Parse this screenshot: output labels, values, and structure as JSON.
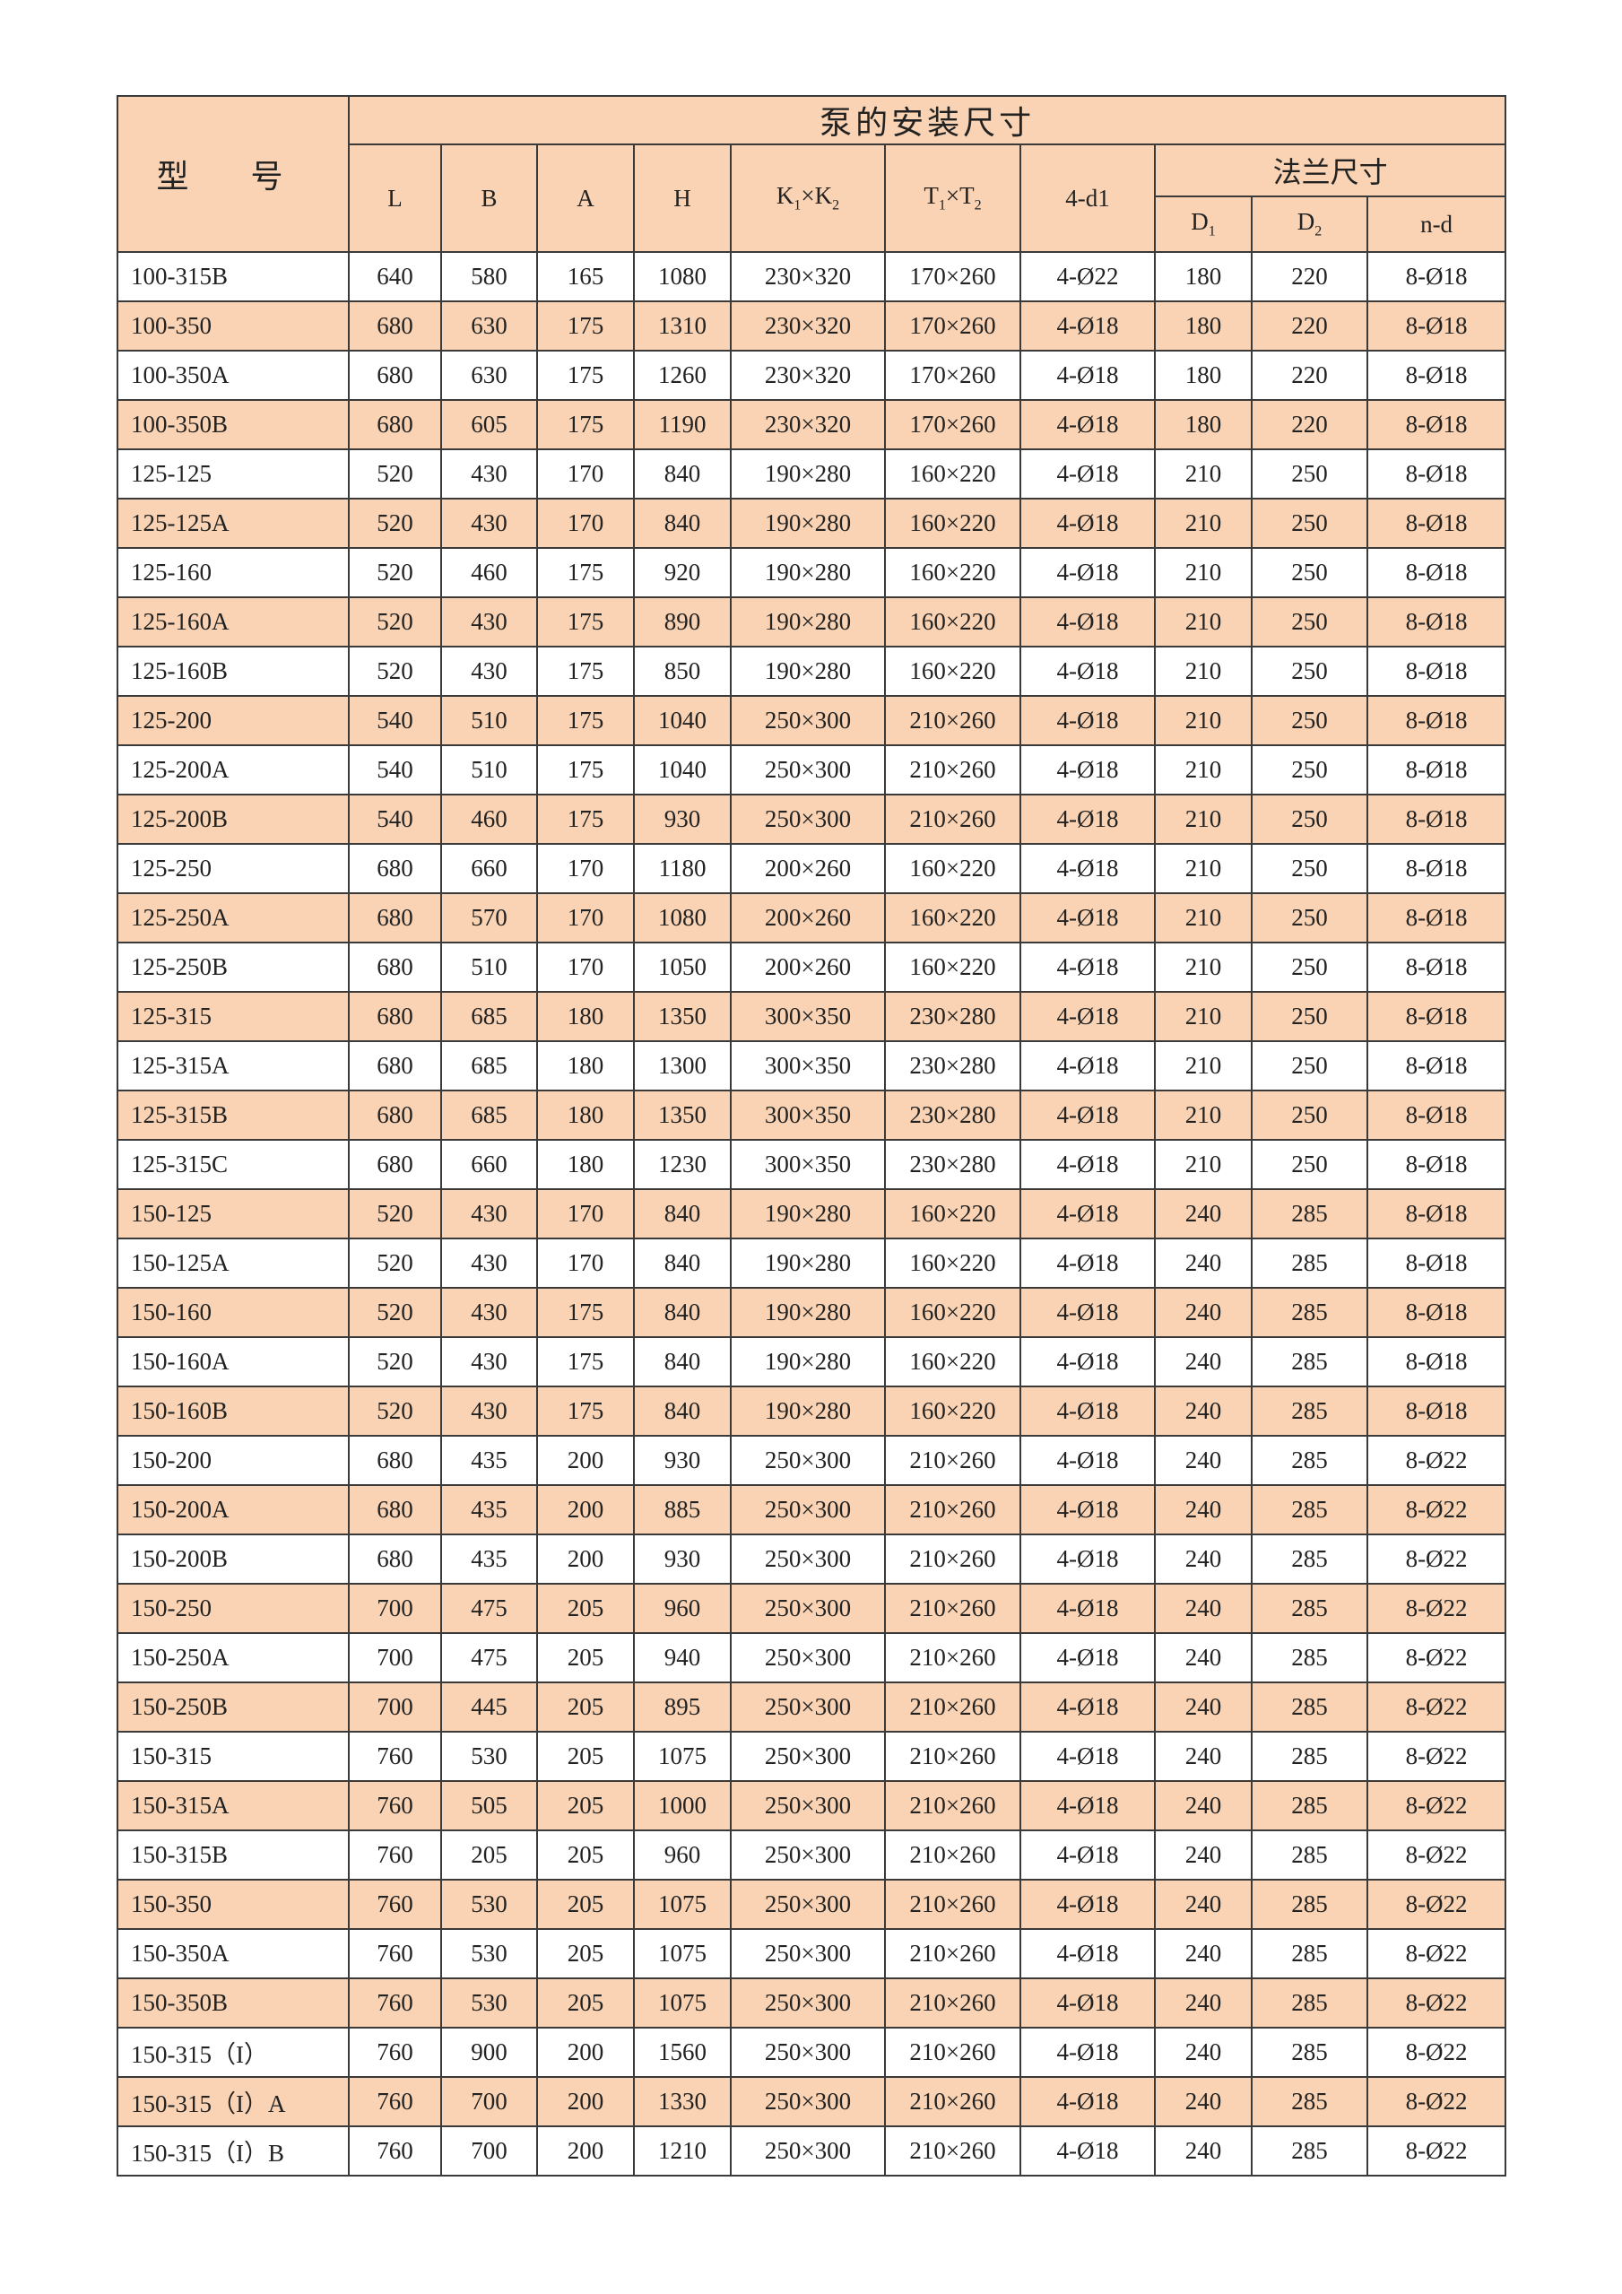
{
  "header": {
    "model": "型 号",
    "group": "泵的安装尺寸",
    "flange_group": "法兰尺寸",
    "columns": {
      "L": "L",
      "B": "B",
      "A": "A",
      "H": "H",
      "K": [
        "K",
        "1",
        "×K",
        "2"
      ],
      "T": [
        "T",
        "1",
        "×T",
        "2"
      ],
      "d1": "4-d1",
      "D1": [
        "D",
        "1"
      ],
      "D2": [
        "D",
        "2"
      ],
      "nd": "n-d"
    }
  },
  "colors": {
    "row_highlight": "#f9d3b3",
    "border": "#3a3a3a"
  },
  "rows": [
    [
      "100-315B",
      "640",
      "580",
      "165",
      "1080",
      "230×320",
      "170×260",
      "4-Ø22",
      "180",
      "220",
      "8-Ø18"
    ],
    [
      "100-350",
      "680",
      "630",
      "175",
      "1310",
      "230×320",
      "170×260",
      "4-Ø18",
      "180",
      "220",
      "8-Ø18"
    ],
    [
      "100-350A",
      "680",
      "630",
      "175",
      "1260",
      "230×320",
      "170×260",
      "4-Ø18",
      "180",
      "220",
      "8-Ø18"
    ],
    [
      "100-350B",
      "680",
      "605",
      "175",
      "1190",
      "230×320",
      "170×260",
      "4-Ø18",
      "180",
      "220",
      "8-Ø18"
    ],
    [
      "125-125",
      "520",
      "430",
      "170",
      "840",
      "190×280",
      "160×220",
      "4-Ø18",
      "210",
      "250",
      "8-Ø18"
    ],
    [
      "125-125A",
      "520",
      "430",
      "170",
      "840",
      "190×280",
      "160×220",
      "4-Ø18",
      "210",
      "250",
      "8-Ø18"
    ],
    [
      "125-160",
      "520",
      "460",
      "175",
      "920",
      "190×280",
      "160×220",
      "4-Ø18",
      "210",
      "250",
      "8-Ø18"
    ],
    [
      "125-160A",
      "520",
      "430",
      "175",
      "890",
      "190×280",
      "160×220",
      "4-Ø18",
      "210",
      "250",
      "8-Ø18"
    ],
    [
      "125-160B",
      "520",
      "430",
      "175",
      "850",
      "190×280",
      "160×220",
      "4-Ø18",
      "210",
      "250",
      "8-Ø18"
    ],
    [
      "125-200",
      "540",
      "510",
      "175",
      "1040",
      "250×300",
      "210×260",
      "4-Ø18",
      "210",
      "250",
      "8-Ø18"
    ],
    [
      "125-200A",
      "540",
      "510",
      "175",
      "1040",
      "250×300",
      "210×260",
      "4-Ø18",
      "210",
      "250",
      "8-Ø18"
    ],
    [
      "125-200B",
      "540",
      "460",
      "175",
      "930",
      "250×300",
      "210×260",
      "4-Ø18",
      "210",
      "250",
      "8-Ø18"
    ],
    [
      "125-250",
      "680",
      "660",
      "170",
      "1180",
      "200×260",
      "160×220",
      "4-Ø18",
      "210",
      "250",
      "8-Ø18"
    ],
    [
      "125-250A",
      "680",
      "570",
      "170",
      "1080",
      "200×260",
      "160×220",
      "4-Ø18",
      "210",
      "250",
      "8-Ø18"
    ],
    [
      "125-250B",
      "680",
      "510",
      "170",
      "1050",
      "200×260",
      "160×220",
      "4-Ø18",
      "210",
      "250",
      "8-Ø18"
    ],
    [
      "125-315",
      "680",
      "685",
      "180",
      "1350",
      "300×350",
      "230×280",
      "4-Ø18",
      "210",
      "250",
      "8-Ø18"
    ],
    [
      "125-315A",
      "680",
      "685",
      "180",
      "1300",
      "300×350",
      "230×280",
      "4-Ø18",
      "210",
      "250",
      "8-Ø18"
    ],
    [
      "125-315B",
      "680",
      "685",
      "180",
      "1350",
      "300×350",
      "230×280",
      "4-Ø18",
      "210",
      "250",
      "8-Ø18"
    ],
    [
      "125-315C",
      "680",
      "660",
      "180",
      "1230",
      "300×350",
      "230×280",
      "4-Ø18",
      "210",
      "250",
      "8-Ø18"
    ],
    [
      "150-125",
      "520",
      "430",
      "170",
      "840",
      "190×280",
      "160×220",
      "4-Ø18",
      "240",
      "285",
      "8-Ø18"
    ],
    [
      "150-125A",
      "520",
      "430",
      "170",
      "840",
      "190×280",
      "160×220",
      "4-Ø18",
      "240",
      "285",
      "8-Ø18"
    ],
    [
      "150-160",
      "520",
      "430",
      "175",
      "840",
      "190×280",
      "160×220",
      "4-Ø18",
      "240",
      "285",
      "8-Ø18"
    ],
    [
      "150-160A",
      "520",
      "430",
      "175",
      "840",
      "190×280",
      "160×220",
      "4-Ø18",
      "240",
      "285",
      "8-Ø18"
    ],
    [
      "150-160B",
      "520",
      "430",
      "175",
      "840",
      "190×280",
      "160×220",
      "4-Ø18",
      "240",
      "285",
      "8-Ø18"
    ],
    [
      "150-200",
      "680",
      "435",
      "200",
      "930",
      "250×300",
      "210×260",
      "4-Ø18",
      "240",
      "285",
      "8-Ø22"
    ],
    [
      "150-200A",
      "680",
      "435",
      "200",
      "885",
      "250×300",
      "210×260",
      "4-Ø18",
      "240",
      "285",
      "8-Ø22"
    ],
    [
      "150-200B",
      "680",
      "435",
      "200",
      "930",
      "250×300",
      "210×260",
      "4-Ø18",
      "240",
      "285",
      "8-Ø22"
    ],
    [
      "150-250",
      "700",
      "475",
      "205",
      "960",
      "250×300",
      "210×260",
      "4-Ø18",
      "240",
      "285",
      "8-Ø22"
    ],
    [
      "150-250A",
      "700",
      "475",
      "205",
      "940",
      "250×300",
      "210×260",
      "4-Ø18",
      "240",
      "285",
      "8-Ø22"
    ],
    [
      "150-250B",
      "700",
      "445",
      "205",
      "895",
      "250×300",
      "210×260",
      "4-Ø18",
      "240",
      "285",
      "8-Ø22"
    ],
    [
      "150-315",
      "760",
      "530",
      "205",
      "1075",
      "250×300",
      "210×260",
      "4-Ø18",
      "240",
      "285",
      "8-Ø22"
    ],
    [
      "150-315A",
      "760",
      "505",
      "205",
      "1000",
      "250×300",
      "210×260",
      "4-Ø18",
      "240",
      "285",
      "8-Ø22"
    ],
    [
      "150-315B",
      "760",
      "205",
      "205",
      "960",
      "250×300",
      "210×260",
      "4-Ø18",
      "240",
      "285",
      "8-Ø22"
    ],
    [
      "150-350",
      "760",
      "530",
      "205",
      "1075",
      "250×300",
      "210×260",
      "4-Ø18",
      "240",
      "285",
      "8-Ø22"
    ],
    [
      "150-350A",
      "760",
      "530",
      "205",
      "1075",
      "250×300",
      "210×260",
      "4-Ø18",
      "240",
      "285",
      "8-Ø22"
    ],
    [
      "150-350B",
      "760",
      "530",
      "205",
      "1075",
      "250×300",
      "210×260",
      "4-Ø18",
      "240",
      "285",
      "8-Ø22"
    ],
    [
      "150-315（I）",
      "760",
      "900",
      "200",
      "1560",
      "250×300",
      "210×260",
      "4-Ø18",
      "240",
      "285",
      "8-Ø22"
    ],
    [
      "150-315（I）A",
      "760",
      "700",
      "200",
      "1330",
      "250×300",
      "210×260",
      "4-Ø18",
      "240",
      "285",
      "8-Ø22"
    ],
    [
      "150-315（I）B",
      "760",
      "700",
      "200",
      "1210",
      "250×300",
      "210×260",
      "4-Ø18",
      "240",
      "285",
      "8-Ø22"
    ]
  ]
}
